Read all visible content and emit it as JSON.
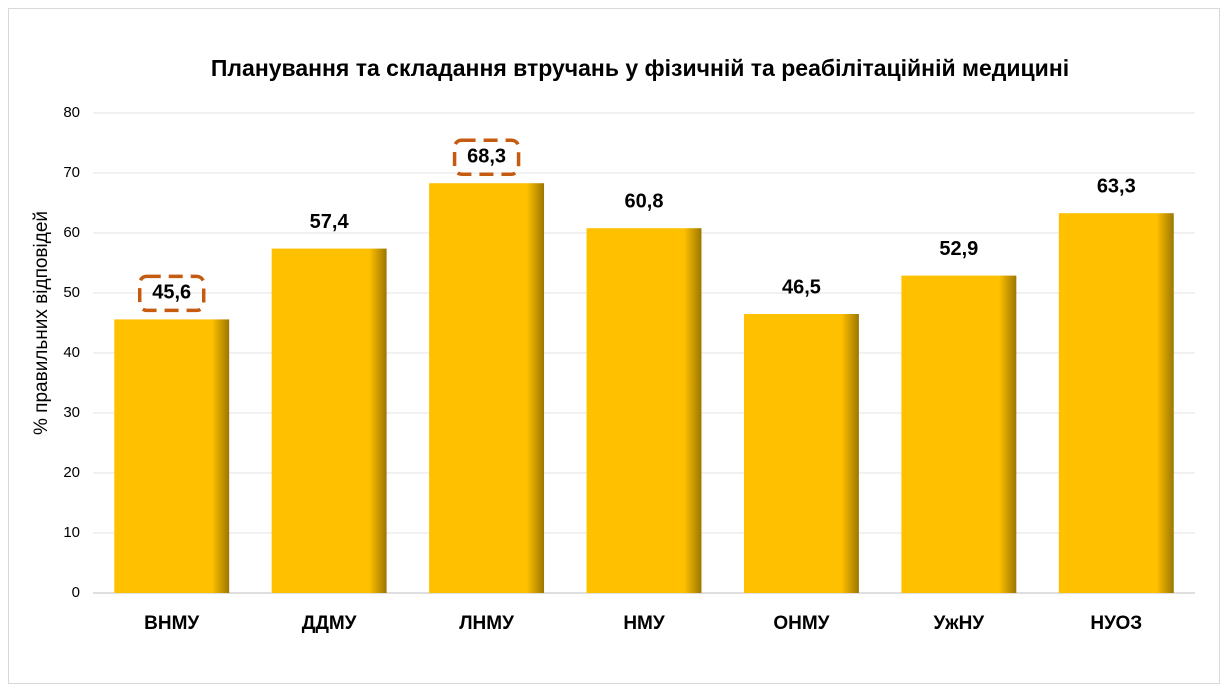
{
  "chart_data": {
    "type": "bar",
    "title": "Планування та складання втручань у фізичній та реабілітаційній медицині",
    "y_label": "% правильних відповідей",
    "categories": [
      "ВНМУ",
      "ДДМУ",
      "ЛНМУ",
      "НМУ",
      "ОНМУ",
      "УжНУ",
      "НУОЗ"
    ],
    "values": [
      45.6,
      57.4,
      68.3,
      60.8,
      46.5,
      52.9,
      63.3
    ],
    "value_labels": [
      "45,6",
      "57,4",
      "68,3",
      "60,8",
      "46,5",
      "52,9",
      "63,3"
    ],
    "color": "#ffc000",
    "highlighted": [
      0,
      2
    ],
    "highlight_color": "#c55a11",
    "ylim": [
      0,
      80
    ],
    "yticks": [
      0,
      10,
      20,
      30,
      40,
      50,
      60,
      70,
      80
    ],
    "grid": true
  }
}
